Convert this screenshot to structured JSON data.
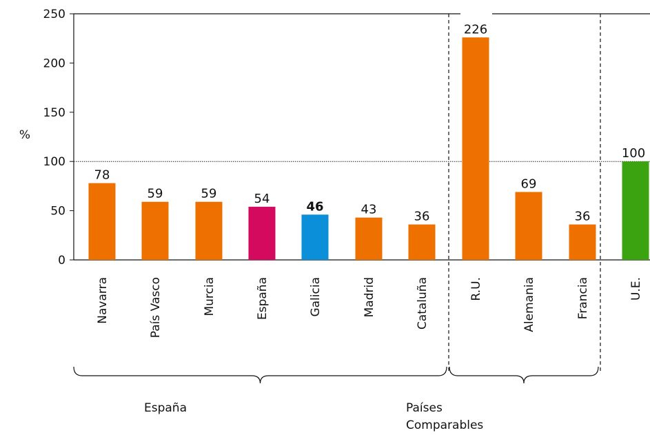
{
  "chart_data": {
    "type": "bar",
    "ylabel": "%",
    "ylim": [
      0,
      250
    ],
    "yticks": [
      0,
      50,
      100,
      150,
      200,
      250
    ],
    "reference_line": 100,
    "categories": [
      "Navarra",
      "País Vasco",
      "Murcia",
      "España",
      "Galicia",
      "Madrid",
      "Cataluña",
      "R.U.",
      "Alemania",
      "Francia",
      "U.E."
    ],
    "values": [
      78,
      59,
      59,
      54,
      46,
      43,
      36,
      226,
      69,
      36,
      100
    ],
    "value_labels": [
      "78",
      "59",
      "59",
      "54",
      "46",
      "43",
      "36",
      "226",
      "69",
      "36",
      "100"
    ],
    "bold_categories": [
      "Galicia"
    ],
    "colors": [
      "#ee7100",
      "#ee7100",
      "#ee7100",
      "#d40a5e",
      "#0a8fd8",
      "#ee7100",
      "#ee7100",
      "#ee7100",
      "#ee7100",
      "#ee7100",
      "#3aa30f"
    ],
    "groups": [
      {
        "label": "España",
        "from": 0,
        "to": 6
      },
      {
        "label": "Países Comparables",
        "label_lines": [
          "Países",
          "Comparables"
        ],
        "from": 7,
        "to": 9
      }
    ]
  }
}
